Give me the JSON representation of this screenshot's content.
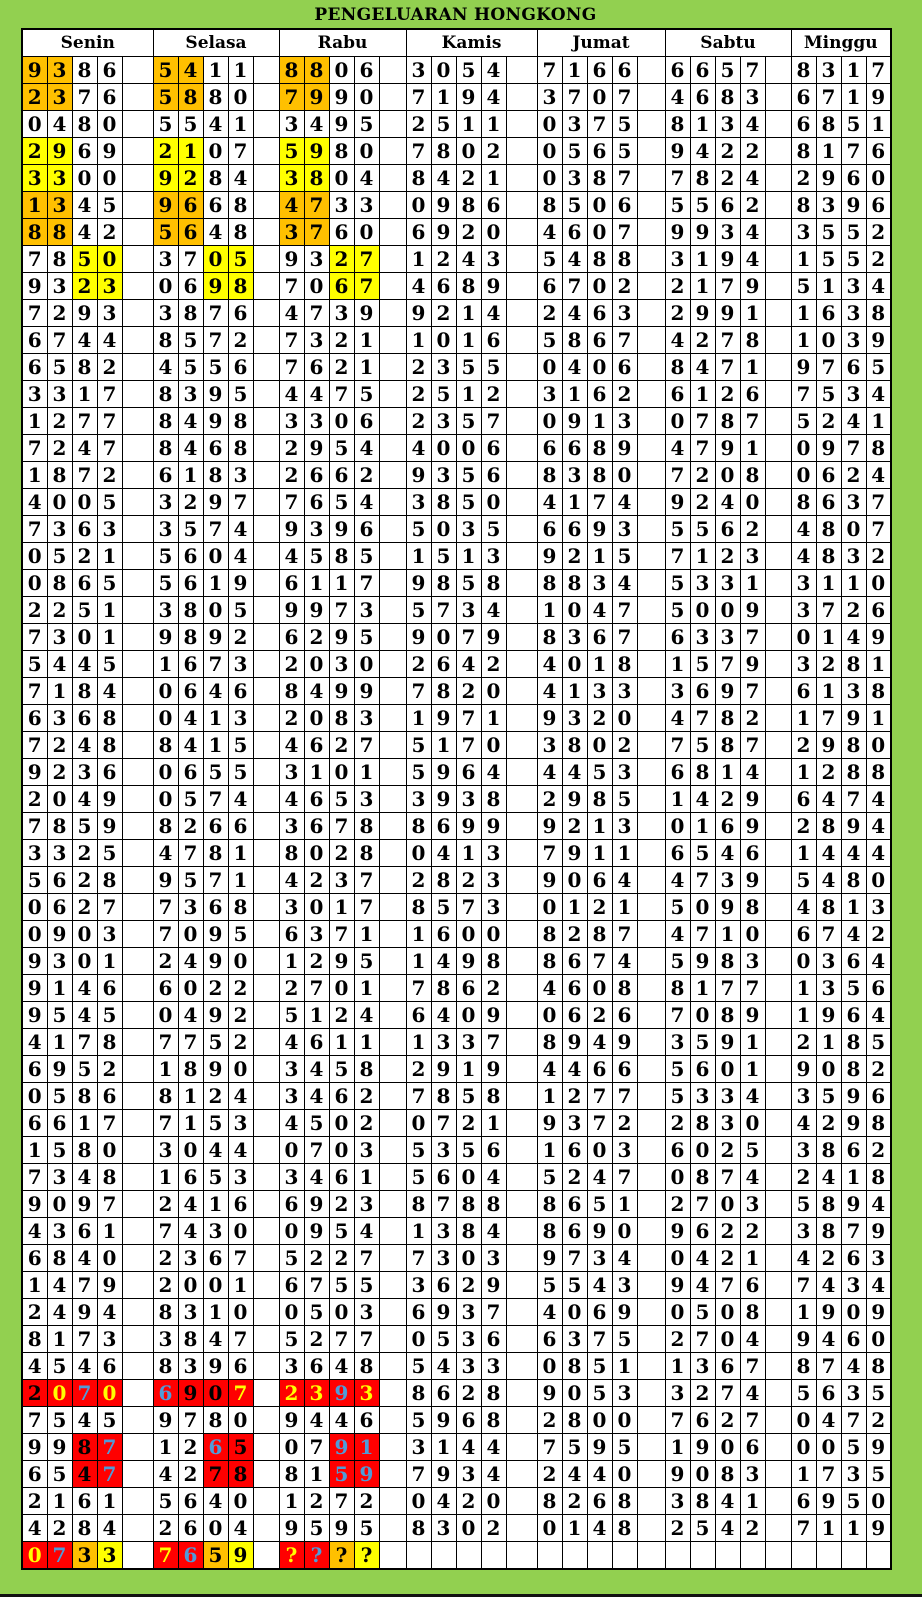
{
  "title": "PENGELUARAN HONGKONG",
  "days": [
    "Senin",
    "Selasa",
    "Rabu",
    "Kamis",
    "Jumat",
    "Sabtu",
    "Minggu"
  ],
  "colors": {
    "background": "#92d050",
    "orange": "#ffc000",
    "yellow": "#ffff00",
    "red": "#ff0000",
    "blue_text": "#4f9bd9"
  },
  "rows": [
    [
      "9386",
      "5411",
      "8806",
      "3054",
      "7166",
      "6657",
      "8317"
    ],
    [
      "2376",
      "5880",
      "7990",
      "7194",
      "3707",
      "4683",
      "6719"
    ],
    [
      "0480",
      "5541",
      "3495",
      "2511",
      "0375",
      "8134",
      "6851"
    ],
    [
      "2969",
      "2107",
      "5980",
      "7802",
      "0565",
      "9422",
      "8176"
    ],
    [
      "3300",
      "9284",
      "3804",
      "8421",
      "0387",
      "7824",
      "2960"
    ],
    [
      "1345",
      "9668",
      "4733",
      "0986",
      "8506",
      "5562",
      "8396"
    ],
    [
      "8842",
      "5648",
      "3760",
      "6920",
      "4607",
      "9934",
      "3552"
    ],
    [
      "7850",
      "3705",
      "9327",
      "1243",
      "5488",
      "3194",
      "1552"
    ],
    [
      "9323",
      "0698",
      "7067",
      "4689",
      "6702",
      "2179",
      "5134"
    ],
    [
      "7293",
      "3876",
      "4739",
      "9214",
      "2463",
      "2991",
      "1638"
    ],
    [
      "6744",
      "8572",
      "7321",
      "1016",
      "5867",
      "4278",
      "1039"
    ],
    [
      "6582",
      "4556",
      "7621",
      "2355",
      "0406",
      "8471",
      "9765"
    ],
    [
      "3317",
      "8395",
      "4475",
      "2512",
      "3162",
      "6126",
      "7534"
    ],
    [
      "1277",
      "8498",
      "3306",
      "2357",
      "0913",
      "0787",
      "5241"
    ],
    [
      "7247",
      "8468",
      "2954",
      "4006",
      "6689",
      "4791",
      "0978"
    ],
    [
      "1872",
      "6183",
      "2662",
      "9356",
      "8380",
      "7208",
      "0624"
    ],
    [
      "4005",
      "3297",
      "7654",
      "3850",
      "4174",
      "9240",
      "8637"
    ],
    [
      "7363",
      "3574",
      "9396",
      "5035",
      "6693",
      "5562",
      "4807"
    ],
    [
      "0521",
      "5604",
      "4585",
      "1513",
      "9215",
      "7123",
      "4832"
    ],
    [
      "0865",
      "5619",
      "6117",
      "9858",
      "8834",
      "5331",
      "3110"
    ],
    [
      "2251",
      "3805",
      "9973",
      "5734",
      "1047",
      "5009",
      "3726"
    ],
    [
      "7301",
      "9892",
      "6295",
      "9079",
      "8367",
      "6337",
      "0149"
    ],
    [
      "5445",
      "1673",
      "2030",
      "2642",
      "4018",
      "1579",
      "3281"
    ],
    [
      "7184",
      "0646",
      "8499",
      "7820",
      "4133",
      "3697",
      "6138"
    ],
    [
      "6368",
      "0413",
      "2083",
      "1971",
      "9320",
      "4782",
      "1791"
    ],
    [
      "7248",
      "8415",
      "4627",
      "5170",
      "3802",
      "7587",
      "2980"
    ],
    [
      "9236",
      "0655",
      "3101",
      "5964",
      "4453",
      "6814",
      "1288"
    ],
    [
      "2049",
      "0574",
      "4653",
      "3938",
      "2985",
      "1429",
      "6474"
    ],
    [
      "7859",
      "8266",
      "3678",
      "8699",
      "9213",
      "0169",
      "2894"
    ],
    [
      "3325",
      "4781",
      "8028",
      "0413",
      "7911",
      "6546",
      "1444"
    ],
    [
      "5628",
      "9571",
      "4237",
      "2823",
      "9064",
      "4739",
      "5480"
    ],
    [
      "0627",
      "7368",
      "3017",
      "8573",
      "0121",
      "5098",
      "4813"
    ],
    [
      "0903",
      "7095",
      "6371",
      "1600",
      "8287",
      "4710",
      "6742"
    ],
    [
      "9301",
      "2490",
      "1295",
      "1498",
      "8674",
      "5983",
      "0364"
    ],
    [
      "9146",
      "6022",
      "2701",
      "7862",
      "4608",
      "8177",
      "1356"
    ],
    [
      "9545",
      "0492",
      "5124",
      "6409",
      "0626",
      "7089",
      "1964"
    ],
    [
      "4178",
      "7752",
      "4611",
      "1337",
      "8949",
      "3591",
      "2185"
    ],
    [
      "6952",
      "1890",
      "3458",
      "2919",
      "4466",
      "5601",
      "9082"
    ],
    [
      "0586",
      "8124",
      "3462",
      "7858",
      "1277",
      "5334",
      "3596"
    ],
    [
      "6617",
      "7153",
      "4502",
      "0721",
      "9372",
      "2830",
      "4298"
    ],
    [
      "1580",
      "3044",
      "0703",
      "5356",
      "1603",
      "6025",
      "3862"
    ],
    [
      "7348",
      "1653",
      "3461",
      "5604",
      "5247",
      "0874",
      "2418"
    ],
    [
      "9097",
      "2416",
      "6923",
      "8788",
      "8651",
      "2703",
      "5894"
    ],
    [
      "4361",
      "7430",
      "0954",
      "1384",
      "8690",
      "9622",
      "3879"
    ],
    [
      "6840",
      "2367",
      "5227",
      "7303",
      "9734",
      "0421",
      "4263"
    ],
    [
      "1479",
      "2001",
      "6755",
      "3629",
      "5543",
      "9476",
      "7434"
    ],
    [
      "2494",
      "8310",
      "0503",
      "6937",
      "4069",
      "0508",
      "1909"
    ],
    [
      "8173",
      "3847",
      "5277",
      "0536",
      "6375",
      "2704",
      "9460"
    ],
    [
      "4546",
      "8396",
      "3648",
      "5433",
      "0851",
      "1367",
      "8748"
    ],
    [
      "2070",
      "6907",
      "2393",
      "8628",
      "9053",
      "3274",
      "5635"
    ],
    [
      "7545",
      "9780",
      "9446",
      "5968",
      "2800",
      "7627",
      "0472"
    ],
    [
      "9987",
      "1265",
      "0791",
      "3144",
      "7595",
      "1906",
      "0059"
    ],
    [
      "6547",
      "4278",
      "8159",
      "7934",
      "2440",
      "9083",
      "1735"
    ],
    [
      "2161",
      "5640",
      "1272",
      "0420",
      "8268",
      "3841",
      "6950"
    ],
    [
      "4284",
      "2604",
      "9595",
      "8302",
      "0148",
      "2542",
      "7119"
    ],
    [
      "0733",
      "7659",
      "????",
      "",
      "",
      "",
      ""
    ]
  ],
  "cell_styles": {
    "0,0": "OO..|kkkk",
    "0,1": "OO..|kkkk",
    "0,2": "OO..|kkkk",
    "1,0": "OO..|kkkk",
    "1,1": "OO..|kkkk",
    "1,2": "OO..|kkkk",
    "3,0": "YY..|kkkk",
    "3,1": "YY..|kkkk",
    "3,2": "YY..|kkkk",
    "4,0": "YY..|kkkk",
    "4,1": "YY..|kkkk",
    "4,2": "YY..|kkkk",
    "5,0": "OO..|kkkk",
    "5,1": "OO..|kkkk",
    "5,2": "OO..|kkkk",
    "6,0": "OO..|kkkk",
    "6,1": "OO..|kkkk",
    "6,2": "OO..|kkkk",
    "7,0": "..YY|kkkk",
    "7,1": "..YY|kkkk",
    "7,2": "..YY|kkkk",
    "8,0": "..YY|kkkk",
    "8,1": "..YY|kkkk",
    "8,2": "..YY|kkkk",
    "49,0": "RRRR|kyby",
    "49,1": "RRRR|bkky",
    "49,2": "RRRR|yyby",
    "51,0": "..RR|kkkb",
    "51,1": "..RR|kkbk",
    "51,2": "..RR|kkbb",
    "52,0": "..RR|kkkb",
    "52,1": "..RR|kkkk",
    "52,2": "..RR|kkbb",
    "55,0": "RROY|ybkk",
    "55,1": "RROY|ybkk",
    "55,2": "RROY|ybkk"
  }
}
